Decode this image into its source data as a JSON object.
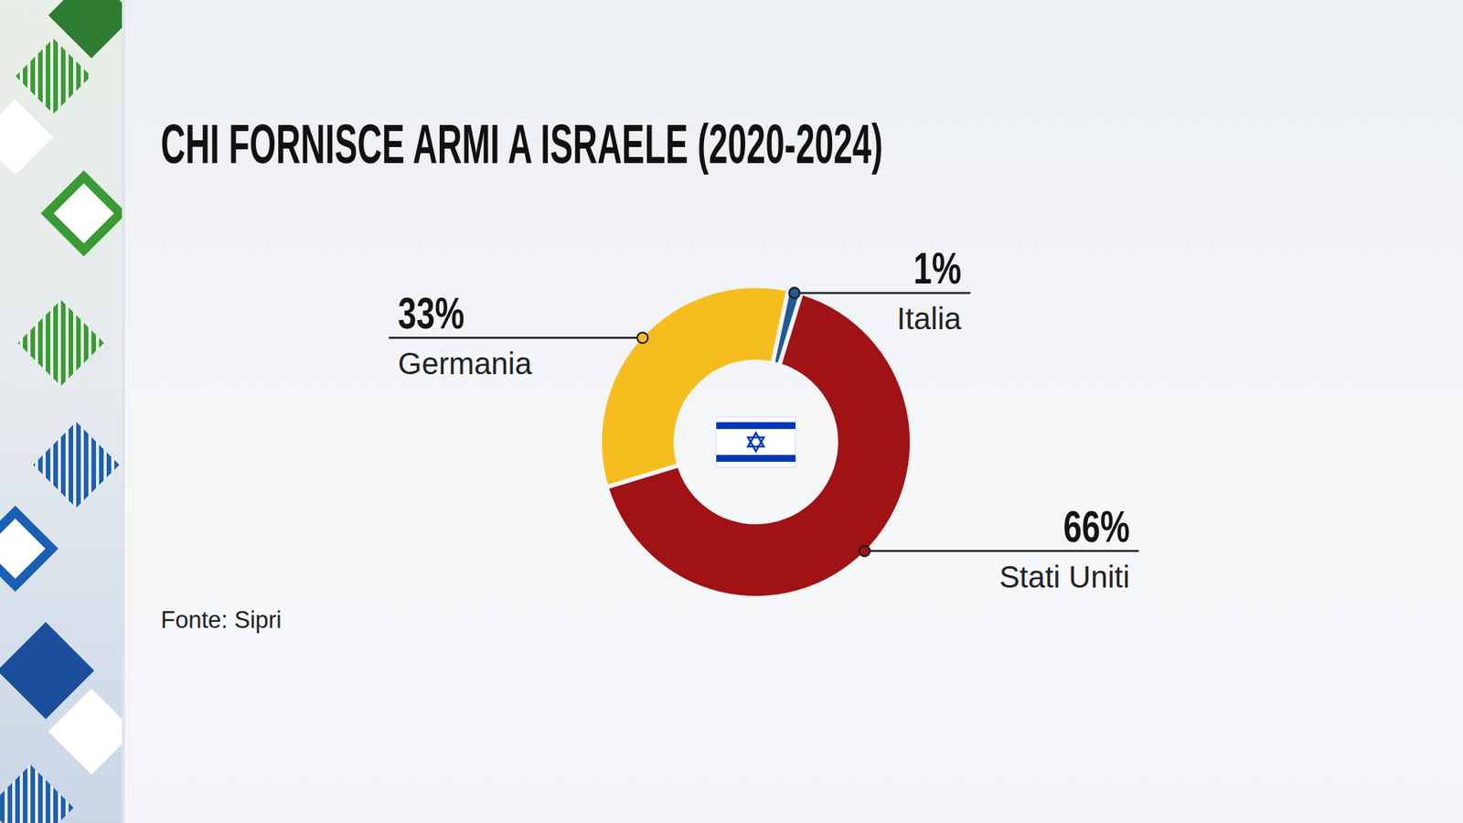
{
  "chart_data": {
    "type": "donut",
    "title": "CHI FORNISCE ARMI A ISRAELE (2020-2024)",
    "categories": [
      "Italia",
      "Stati Uniti",
      "Germania"
    ],
    "values": [
      1,
      66,
      33
    ],
    "value_labels": [
      "1%",
      "66%",
      "33%"
    ],
    "colors": [
      "#1f5a96",
      "#a01214",
      "#f6bd1e"
    ],
    "data_labels": true,
    "source": "Fonte: Sipri"
  }
}
